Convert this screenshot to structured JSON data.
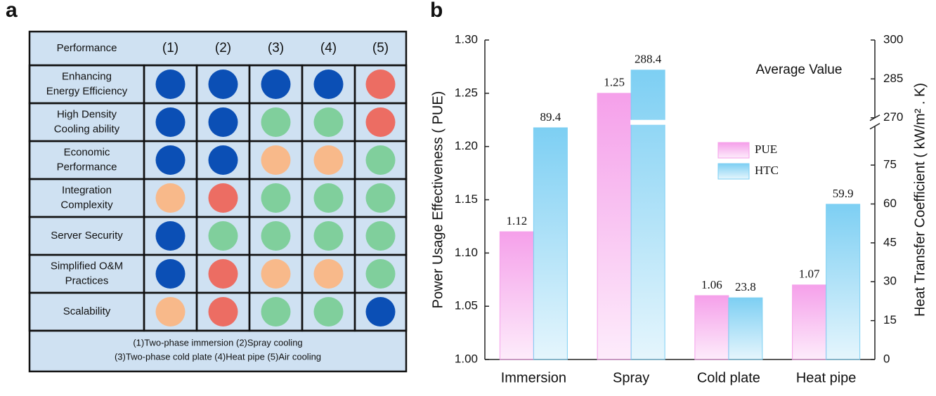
{
  "panel_a": {
    "label": "a",
    "header": [
      "Performance",
      "(1)",
      "(2)",
      "(3)",
      "(4)",
      "(5)"
    ],
    "rows": [
      {
        "label_lines": [
          "Enhancing",
          "Energy Efficiency"
        ],
        "cells": [
          "#0b4fb5",
          "#0b4fb5",
          "#0b4fb5",
          "#0b4fb5",
          "#ec6d63"
        ]
      },
      {
        "label_lines": [
          "High Density",
          "Cooling ability"
        ],
        "cells": [
          "#0b4fb5",
          "#0b4fb5",
          "#80cf9c",
          "#80cf9c",
          "#ec6d63"
        ]
      },
      {
        "label_lines": [
          "Economic",
          "Performance"
        ],
        "cells": [
          "#0b4fb5",
          "#0b4fb5",
          "#f8b98a",
          "#f8b98a",
          "#80cf9c"
        ]
      },
      {
        "label_lines": [
          "Integration",
          "Complexity"
        ],
        "cells": [
          "#f8b98a",
          "#ec6d63",
          "#80cf9c",
          "#80cf9c",
          "#80cf9c"
        ]
      },
      {
        "label_lines": [
          "Server Security"
        ],
        "cells": [
          "#0b4fb5",
          "#80cf9c",
          "#80cf9c",
          "#80cf9c",
          "#80cf9c"
        ]
      },
      {
        "label_lines": [
          "Simplified O&M",
          "Practices"
        ],
        "cells": [
          "#0b4fb5",
          "#ec6d63",
          "#f8b98a",
          "#f8b98a",
          "#80cf9c"
        ]
      },
      {
        "label_lines": [
          "Scalability"
        ],
        "cells": [
          "#f8b98a",
          "#ec6d63",
          "#80cf9c",
          "#80cf9c",
          "#0b4fb5"
        ]
      }
    ],
    "footnote_lines": [
      "(1)Two-phase immersion   (2)Spray cooling",
      "(3)Two-phase cold plate   (4)Heat pipe   (5)Air cooling"
    ]
  },
  "chart_data": {
    "type": "bar",
    "panel_label": "b",
    "annotation": "Average Value",
    "ylabel": "Power Usage Effectiveness ( PUE)",
    "y2label": "Heat Transfer Coefficient ( kW/m² . K)",
    "categories": [
      "Immersion",
      "Spray",
      "Cold plate",
      "Heat pipe"
    ],
    "series": [
      {
        "name": "PUE",
        "color": "#f5a0ea",
        "values": [
          1.12,
          1.25,
          1.06,
          1.07
        ]
      },
      {
        "name": "HTC",
        "color": "#7dcff3",
        "values": [
          89.4,
          288.4,
          23.8,
          59.9
        ],
        "axis": "y2"
      }
    ],
    "ylim": [
      1.0,
      1.3
    ],
    "yticks": [
      {
        "value": 1.0,
        "label": "1.00"
      },
      1.05,
      {
        "value": 1.1,
        "label": "1.10"
      },
      1.15,
      {
        "value": 1.2,
        "label": "1.20"
      },
      1.25,
      {
        "value": 1.3,
        "label": "1.30"
      }
    ],
    "y2lim": [
      0,
      300
    ],
    "y2_break": [
      90,
      270
    ],
    "y2ticks": [
      0,
      15,
      30,
      45,
      60,
      75,
      270,
      285,
      300
    ]
  }
}
